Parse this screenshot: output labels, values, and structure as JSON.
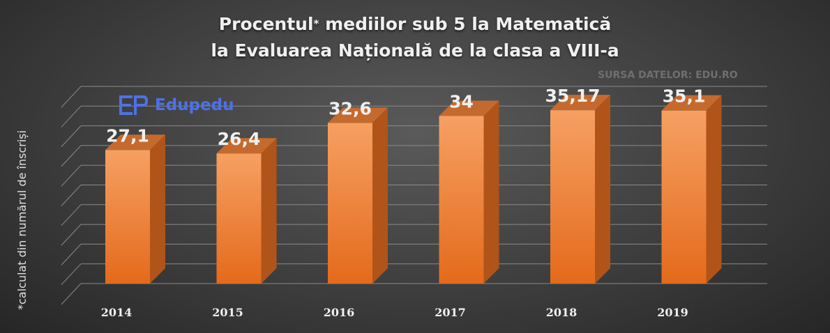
{
  "title": {
    "line1_a": "Procentul",
    "line1_star": "*",
    "line1_b": " mediilor sub 5 la Matematică",
    "line2": "la Evaluarea Națională de la clasa a VIII-a"
  },
  "source": "SURSA DATELOR: EDU.RO",
  "side_note": "*calculat din numărul de înscriși",
  "logo": {
    "text": "Edupedu",
    "icon": "edupedu-logo-icon"
  },
  "colors": {
    "bar_front_top": "#f6a062",
    "bar_front_bottom": "#e46a1c",
    "bar_side": "#b0541a",
    "bar_top": "#c56a2e",
    "grid": "#8a8a8a",
    "text": "#f0f0f0",
    "logo": "#4d72e6"
  },
  "chart_data": {
    "type": "bar",
    "categories": [
      "2014",
      "2015",
      "2016",
      "2017",
      "2018",
      "2019"
    ],
    "values": [
      27.1,
      26.4,
      32.6,
      34,
      35.17,
      35.1
    ],
    "data_labels": [
      "27,1",
      "26,4",
      "32,6",
      "34",
      "35,17",
      "35,1"
    ],
    "title": "Procentul* mediilor sub 5 la Matematică la Evaluarea Națională de la clasa a VIII-a",
    "xlabel": "",
    "ylabel": "",
    "ylim": [
      0,
      40
    ],
    "grid": true,
    "style": "3d-column"
  }
}
